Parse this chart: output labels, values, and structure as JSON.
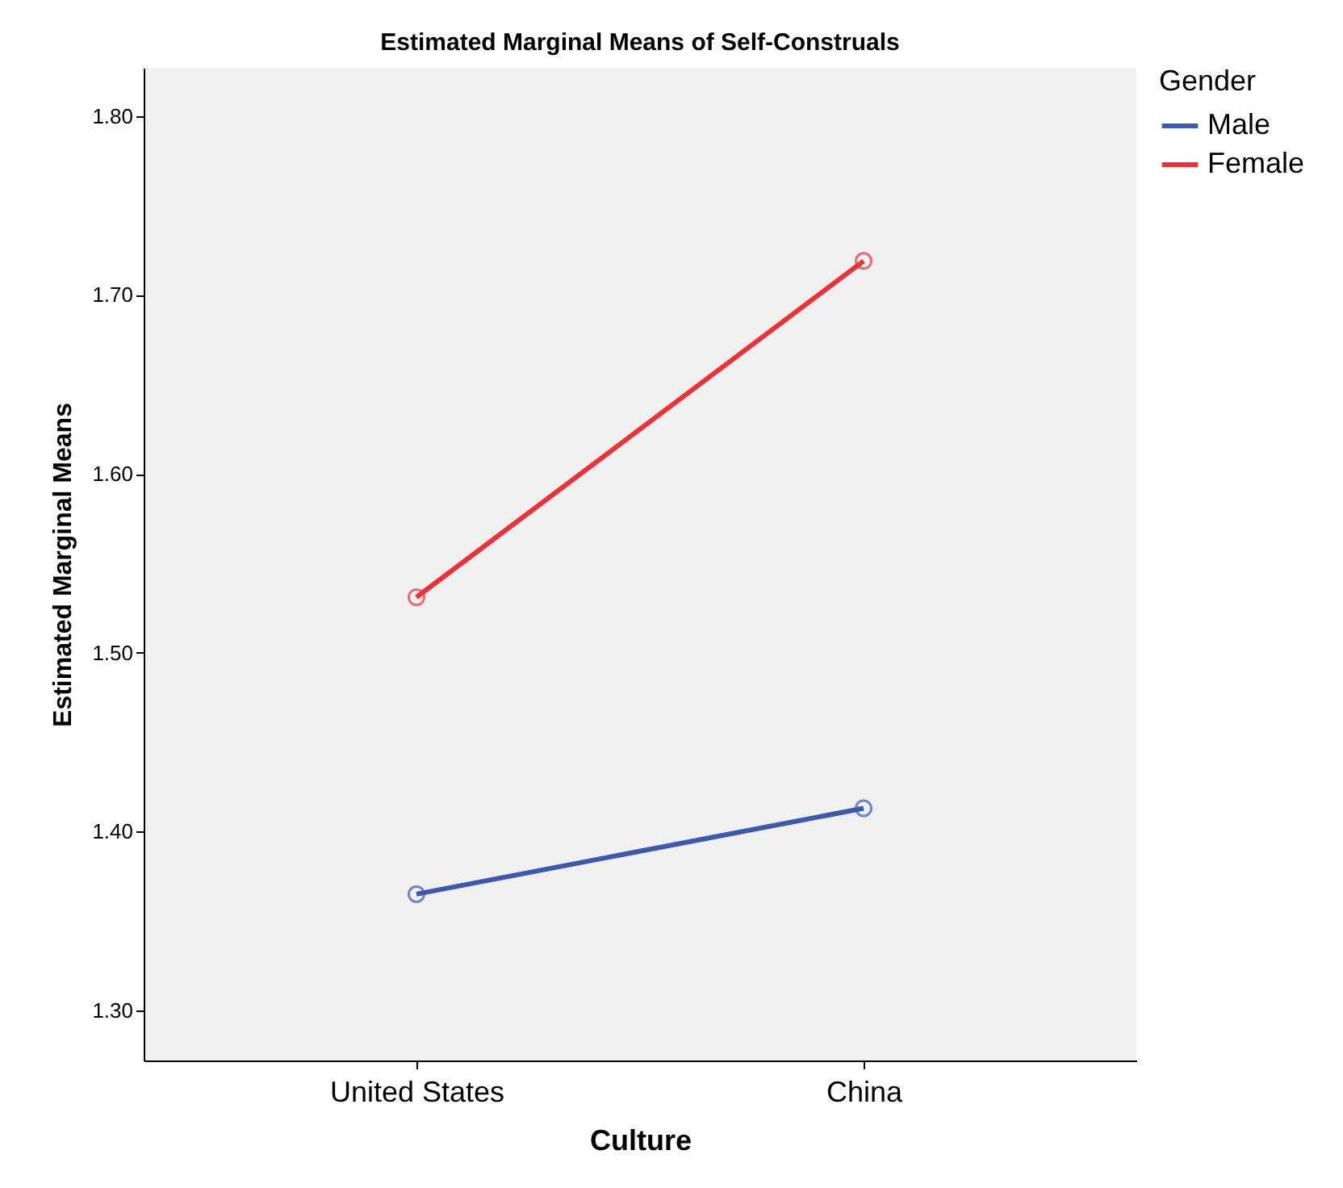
{
  "chart_data": {
    "type": "line",
    "title": "Estimated Marginal Means of Self-Construals",
    "xlabel": "Culture",
    "ylabel": "Estimated Marginal Means",
    "legend_title": "Gender",
    "categories": [
      "United States",
      "China"
    ],
    "series": [
      {
        "name": "Male",
        "color": "#3e58ac",
        "values": [
          1.365,
          1.413
        ]
      },
      {
        "name": "Female",
        "color": "#e8333b",
        "values": [
          1.531,
          1.719
        ]
      }
    ],
    "ylim": [
      1.272,
      1.827
    ],
    "yticks": [
      {
        "value": 1.3,
        "label": "1.30"
      },
      {
        "value": 1.4,
        "label": "1.40"
      },
      {
        "value": 1.5,
        "label": "1.50"
      },
      {
        "value": 1.6,
        "label": "1.60"
      },
      {
        "value": 1.7,
        "label": "1.70"
      },
      {
        "value": 1.8,
        "label": "1.80"
      }
    ],
    "grid": false,
    "legend": "top right",
    "marker": "circle",
    "line_style": "solid"
  }
}
